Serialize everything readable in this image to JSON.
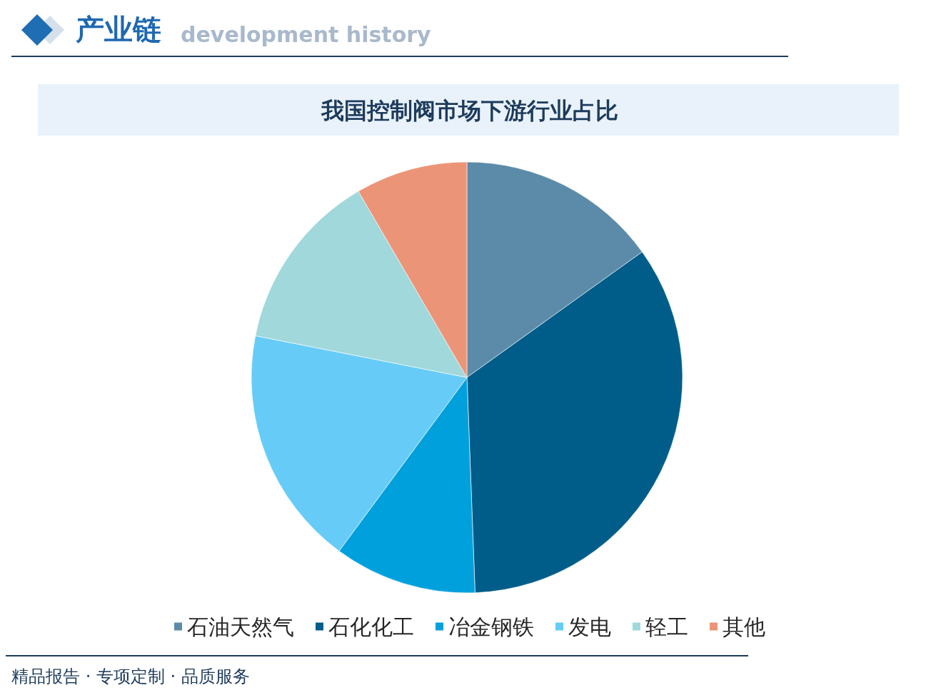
{
  "chart_data": {
    "type": "pie",
    "title": "我国控制阀市场下游行业占比",
    "categories": [
      "石油天然气",
      "石化化工",
      "冶金钢铁",
      "发电",
      "轻工",
      "其他"
    ],
    "values": [
      15.1,
      34.3,
      10.7,
      18.0,
      13.5,
      8.4
    ],
    "colors": [
      "#5b8ba8",
      "#005d8a",
      "#00a0dc",
      "#66ccf7",
      "#a0d8dc",
      "#ec9478"
    ],
    "legend": "bottom",
    "annotations": [
      "产业链",
      "development history",
      "精品报告 · 专项定制 · 品质服务"
    ]
  }
}
